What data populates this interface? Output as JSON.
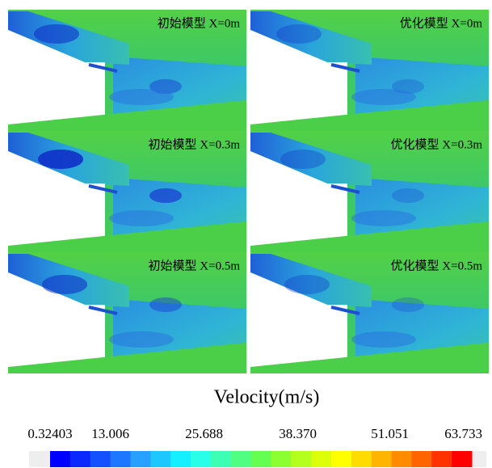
{
  "panels": [
    {
      "label": "初始模型 X=0m"
    },
    {
      "label": "优化模型 X=0m"
    },
    {
      "label": "初始模型 X=0.3m"
    },
    {
      "label": "优化模型 X=0.3m"
    },
    {
      "label": "初始模型 X=0.5m"
    },
    {
      "label": "优化模型 X=0.5m"
    }
  ],
  "colorbar": {
    "title": "Velocity(m/s)",
    "ticks": [
      "0.32403",
      "13.006",
      "25.688",
      "38.370",
      "51.051",
      "63.733"
    ]
  }
}
